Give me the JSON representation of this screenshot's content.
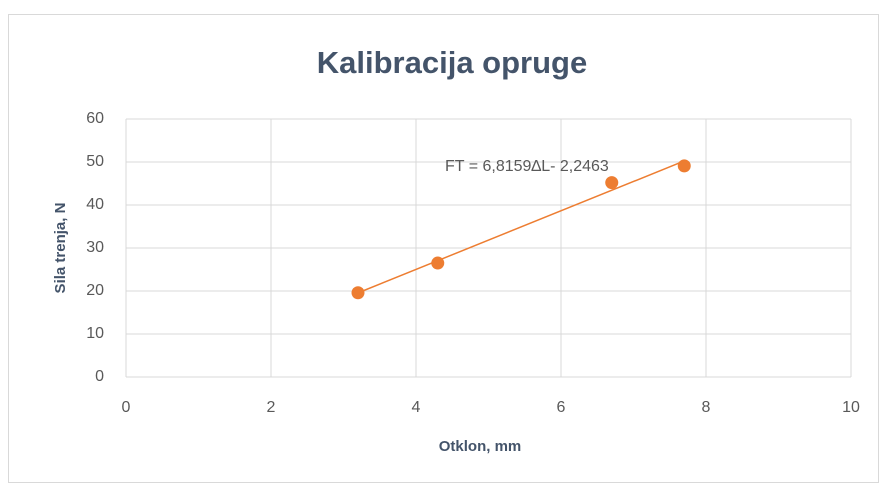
{
  "chart_data": {
    "type": "scatter",
    "title": "Kalibracija opruge",
    "x_label": "Otklon, mm",
    "y_label": "Sila trenja, N",
    "series": [
      {
        "color": "#ed7d31",
        "x": [
          3.2,
          4.3,
          6.7,
          7.7
        ],
        "values": [
          19.6,
          26.5,
          45.2,
          49.1
        ]
      }
    ],
    "trendline": {
      "slope": 6.8159,
      "intercept": -2.2463,
      "label": "FT = 6,8159∆L- 2,2463",
      "color": "#ed7d31"
    },
    "xlim": [
      0,
      10
    ],
    "xticks": [
      0,
      2,
      4,
      6,
      8,
      10
    ],
    "ylim": [
      0,
      60
    ],
    "yticks": [
      0,
      10,
      20,
      30,
      40,
      50,
      60
    ],
    "grid": true,
    "grid_color": "#d9d9d9"
  }
}
